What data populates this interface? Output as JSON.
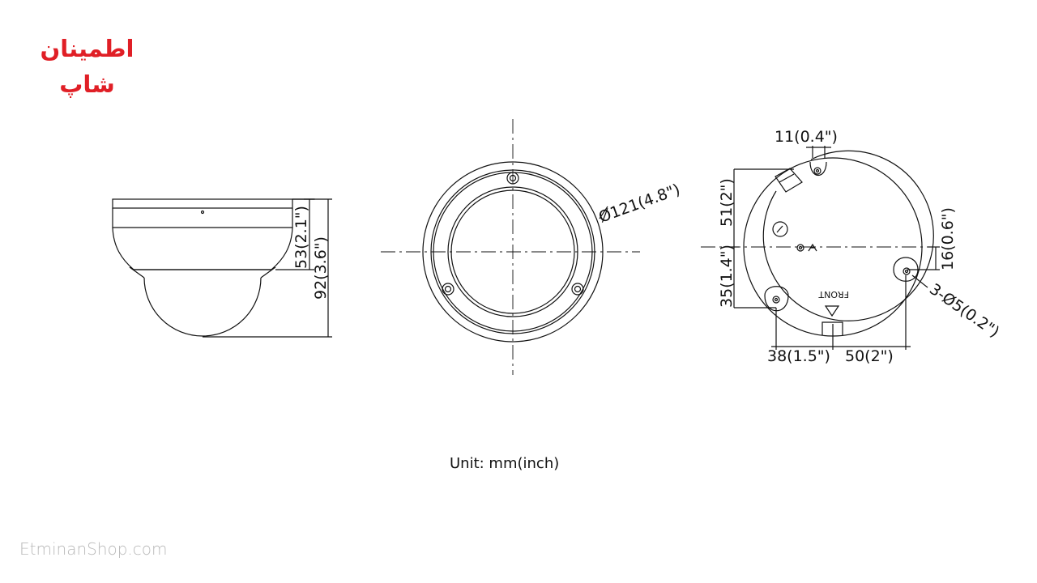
{
  "brand": {
    "logo_text": "اطمینان شاپ",
    "logo_color": "#e01f26",
    "watermark": "EtminanShop.com"
  },
  "drawing": {
    "line_color": "#111111",
    "side_view": {
      "height_inner": "53(2.1\")",
      "height_total": "92(3.6\")"
    },
    "front_view": {
      "diameter": "Ø121(4.8\")"
    },
    "base_view": {
      "top_offset": "11(0.4\")",
      "left_upper": "51(2\")",
      "left_lower": "35(1.4\")",
      "right_offset": "16(0.6\")",
      "holes": "3-Ø5(0.2\")",
      "bottom_left": "38(1.5\")",
      "bottom_right": "50(2\")",
      "front_mark": "FRONT"
    },
    "unit": "Unit: mm(inch)"
  }
}
